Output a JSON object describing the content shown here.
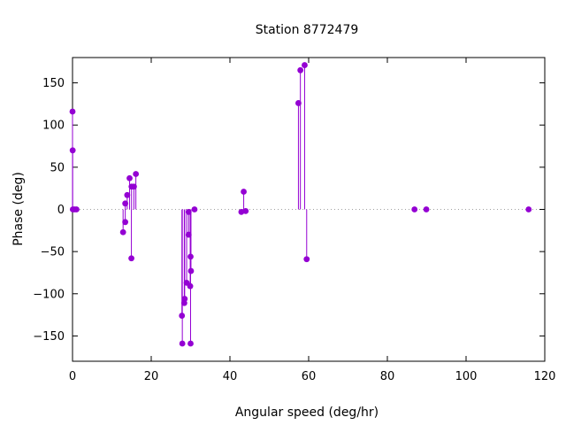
{
  "chart_data": {
    "type": "scatter",
    "style": "impulses-with-points",
    "title": "Station 8772479",
    "xlabel": "Angular speed (deg/hr)",
    "ylabel": "Phase (deg)",
    "xlim": [
      0,
      120
    ],
    "ylim": [
      -180,
      180
    ],
    "xticks": [
      0,
      20,
      40,
      60,
      80,
      100,
      120
    ],
    "yticks": [
      -150,
      -100,
      -50,
      0,
      50,
      100,
      150
    ],
    "grid": false,
    "zero_line": "dotted",
    "color": "#9400d3",
    "points": [
      {
        "x": 0.0,
        "y": 116
      },
      {
        "x": 0.04,
        "y": 70
      },
      {
        "x": 0.08,
        "y": 0
      },
      {
        "x": 0.5,
        "y": 0
      },
      {
        "x": 1.0,
        "y": 0
      },
      {
        "x": 12.85,
        "y": -27
      },
      {
        "x": 13.4,
        "y": 7
      },
      {
        "x": 13.4,
        "y": -15
      },
      {
        "x": 13.9,
        "y": 17
      },
      {
        "x": 14.5,
        "y": 37
      },
      {
        "x": 14.96,
        "y": -58
      },
      {
        "x": 15.0,
        "y": 27
      },
      {
        "x": 15.6,
        "y": 27
      },
      {
        "x": 16.1,
        "y": 42
      },
      {
        "x": 27.8,
        "y": -126
      },
      {
        "x": 27.9,
        "y": -159
      },
      {
        "x": 28.4,
        "y": -111
      },
      {
        "x": 28.5,
        "y": -106
      },
      {
        "x": 29.0,
        "y": -87
      },
      {
        "x": 29.5,
        "y": -3
      },
      {
        "x": 29.5,
        "y": -30
      },
      {
        "x": 29.9,
        "y": -91
      },
      {
        "x": 30.0,
        "y": -56
      },
      {
        "x": 30.0,
        "y": -159
      },
      {
        "x": 30.1,
        "y": -73
      },
      {
        "x": 31.0,
        "y": 0
      },
      {
        "x": 42.9,
        "y": -3
      },
      {
        "x": 43.5,
        "y": 21
      },
      {
        "x": 44.0,
        "y": -2
      },
      {
        "x": 57.4,
        "y": 126
      },
      {
        "x": 57.9,
        "y": 165
      },
      {
        "x": 58.98,
        "y": 171
      },
      {
        "x": 59.5,
        "y": -59
      },
      {
        "x": 86.9,
        "y": 0
      },
      {
        "x": 89.9,
        "y": 0
      },
      {
        "x": 115.9,
        "y": 0
      }
    ]
  }
}
